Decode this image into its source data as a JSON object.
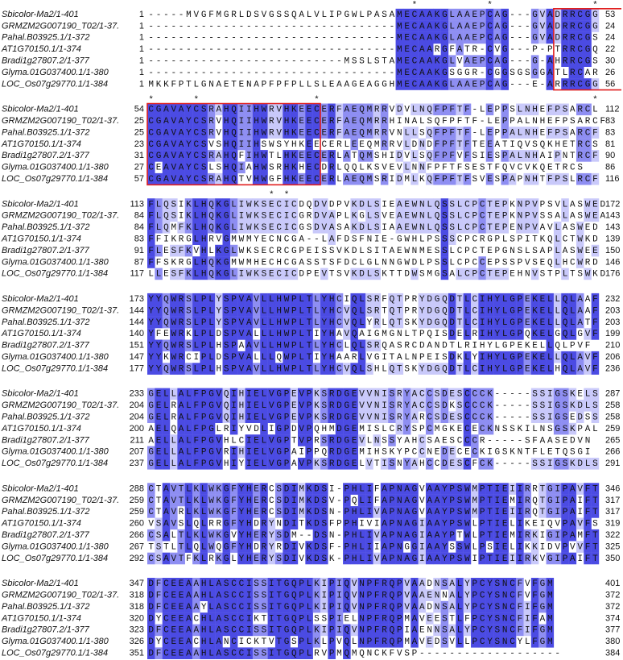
{
  "blocks": [
    {
      "stars": "                                   *         *             *",
      "rows": [
        {
          "name": "Sbicolor-Ma2/1-401",
          "start": "1",
          "seq": "-----MVGFMGRLDSVGSSQALVLIPGWLPASAMECAAKGLAAEPCAG---GVADRRCGG",
          "end": "53"
        },
        {
          "name": "GRMZM2G007190_T02/1-37.",
          "start": "1",
          "seq": "---------------------------------MECAAKGLAAEPCAG---GVADRRCGG",
          "end": "24"
        },
        {
          "name": "Pahal.B03925.1/1-372",
          "start": "1",
          "seq": "---------------------------------MECAAKGLAAEPCAG---GVADRRCGS",
          "end": "24"
        },
        {
          "name": "AT1G70150.1/1-374",
          "start": "1",
          "seq": "---------------------------------MECAARGFATR-CVG---P-PTRRCGQ",
          "end": "22"
        },
        {
          "name": "Bradi1g27807.2/1-377",
          "start": "1",
          "seq": "--------------------------MSSLSTAMECAAKGLVAEPCAG---G-AHRRCGS",
          "end": "30"
        },
        {
          "name": "Glyma.01G037400.1/1-380",
          "start": "1",
          "seq": "---------------------------------MECAAKGSGGR-CGGSGSGGATLRCAR",
          "end": "26"
        },
        {
          "name": "LOC_Os07g29770.1/1-384",
          "start": "1",
          "seq": "MKKFPTLGNAETENAPFPFPLLSLEAAGEAGGHMECAAKGLAAEPCAG---E-ARRRCGG",
          "end": "56"
        }
      ]
    },
    {
      "stars": "*     *               *                                    *",
      "rows": [
        {
          "name": "Sbicolor-Ma2/1-401",
          "start": "54",
          "seq": "CGAVAYCSRAHQIIHWRVHKEECERFAEQMRRVDVLNQFPFTF-LEPPSLNHEFPSARCL",
          "end": "112"
        },
        {
          "name": "GRMZM2G007190_T02/1-37.",
          "start": "25",
          "seq": "CGAVAYCSRVHQIIHWRVHKEECERFAEQMRRHINALSQFPFTF-LEPPALNHEFPSARCF",
          "end": "83"
        },
        {
          "name": "Pahal.B03925.1/1-372",
          "start": "25",
          "seq": "CGAVAYCSRVHQIIHWRVHKEECERFAEQMRRVNLLSQFPFTF-LEPPALNHEFPSARCF",
          "end": "83"
        },
        {
          "name": "AT1G70150.1/1-374",
          "start": "23",
          "seq": "CGAVAYCSVSHQIIHSWSYHKEECERLEEQMRRVLDNDFPFTFTEEATIQVSQKHETRCS",
          "end": "81"
        },
        {
          "name": "Bradi1g27807.2/1-377",
          "start": "31",
          "seq": "CGAVAYCSRAHQFIHWTLHKEECERLATQMSHIDVLSQFPFVFSIESPALNHAIPNTRCF",
          "end": "90"
        },
        {
          "name": "Glyma.01G037400.1/1-380",
          "start": "27",
          "seq": "CEAVAYCSLSHQIAHWSRHKHECDRLQQLKSVEVLNNFPFTFSESTFQVCVKQETRCS",
          "end": "86"
        },
        {
          "name": "LOC_Os07g29770.1/1-384",
          "start": "57",
          "seq": "CGAVAYCSRAHQTVHWGFHKEECERLAEQMSRIDMLKQFPFTFSVESPAPNHTFPSLRCF",
          "end": "116"
        }
      ]
    },
    {
      "stars": "                * *",
      "rows": [
        {
          "name": "Sbicolor-Ma2/1-401",
          "start": "113",
          "seq": "FLQSIKLHQKGLIWKSECICDQDVDPVKDLSIEAEWNLQSSLCPCTEPKNPVPSVLASWED",
          "end": "172"
        },
        {
          "name": "GRMZM2G007190_T02/1-37.",
          "start": "84",
          "seq": "FLQSIKLHQKGLIWKSECICGRDVAPLKGLSVEAEWNLQSSLCPCTEPKNPVSSALASWEA",
          "end": "143"
        },
        {
          "name": "Pahal.B03925.1/1-372",
          "start": "84",
          "seq": "FLQMFKLHQKGLIWKSECICGSDVASAKDLSIAAEWNLQSSLCPCTEPENPVAVLASWED",
          "end": "143"
        },
        {
          "name": "AT1G70150.1/1-374",
          "start": "83",
          "seq": "FFIKRGLHRVGMWMYECNCGA--LAFDSFNIE-GWHLPSSSCPCRGPLSPITKQLCTWKD",
          "end": "139"
        },
        {
          "name": "Bradi1g27807.2/1-377",
          "start": "91",
          "seq": "FLESFKVHLKGLWKSECRCGPEISSVKDLSITAEWNMESSLCPCTEPGNSLSAPLASWEE",
          "end": "150"
        },
        {
          "name": "Glyma.01G037400.1/1-380",
          "start": "87",
          "seq": "FFSKRGLHQKGMWMHECHCGASSTSFDCLGLNNGWDLPSSLCPCCEPSSPVSEQLHCWRD",
          "end": "146"
        },
        {
          "name": "LOC_Os07g29770.1/1-384",
          "start": "117",
          "seq": "LLESFKLHQKGLIWKSECICDPEVTSVKDLSKTTDWSMGSALCPCTEPEHNVSTPLTSWKD",
          "end": "176"
        }
      ]
    },
    {
      "rows": [
        {
          "name": "Sbicolor-Ma2/1-401",
          "start": "173",
          "seq": "YYQWRSLPLYSPVAVLLHWPLTLYHCIQLSRFQTPRYDGQDTLCIHYLGPEKELLQLAAF",
          "end": "232"
        },
        {
          "name": "GRMZM2G007190_T02/1-37.",
          "start": "144",
          "seq": "YYQWRSLPLYSPVAVLLHWPLTLYHCVQLSRTQTPRYDGQDTLCIHYLGPEKELLQLAAF",
          "end": "203"
        },
        {
          "name": "Pahal.B03925.1/1-372",
          "start": "144",
          "seq": "YYQWRSLPLYSPVAVLLHWPLTLYHCVQLYRLQTSKYDGQDTLCIHYLGPEKELLQLATF",
          "end": "203"
        },
        {
          "name": "AT1G70150.1/1-374",
          "start": "140",
          "seq": "YFEWRKLPLDSPVALLLHWPLTIYHAVQAIGMGNLTPQISDELRIHYLGPQKELGQLGVF",
          "end": "199"
        },
        {
          "name": "Bradi1g27807.2/1-377",
          "start": "151",
          "seq": "YYQWRSLPLHSPAAVLLHWPLTLYHCLQLSRQASRCDANDTLRIHYLGPEKELLQLPVF",
          "end": "210"
        },
        {
          "name": "Glyma.01G037400.1/1-380",
          "start": "147",
          "seq": "YYKWRCIPLDSPVALLLQWPLTIYHAARLVGITALNPEISDKLYIHYLGPEKELLQLAVF",
          "end": "206"
        },
        {
          "name": "LOC_Os07g29770.1/1-384",
          "start": "177",
          "seq": "YYQWRSLPLHSPVAVLLHWPLTLYHCVQLSHLQTSKYDGQDTLCIHYLGPEKELHQLAVF",
          "end": "236"
        }
      ]
    },
    {
      "rows": [
        {
          "name": "Sbicolor-Ma2/1-401",
          "start": "233",
          "seq": "GELLALFPGVQIHIELVGPEVPKSRDGEVVNISRYACCSDESCCCK-----SSIGSKELS",
          "end": "287"
        },
        {
          "name": "GRMZM2G007190_T02/1-37.",
          "start": "204",
          "seq": "GELRALFPGVQIHIELVGPEVPKSRDGEVVNISRYACCSDKSCCCK-----SSIGSKDLS",
          "end": "258"
        },
        {
          "name": "Pahal.B03925.1/1-372",
          "start": "204",
          "seq": "GELRALFPGVQIHIELVGPEVPKSRDGEVVNISRYARCSDESCCCK-----SSIGSEDSS",
          "end": "258"
        },
        {
          "name": "AT1G70150.1/1-374",
          "start": "200",
          "seq": "AELQALFPGLRIYVDLIGPDVPQHMDGEMISLCRYSPCMGKECECKNSSKILNSGSKPAL",
          "end": "259"
        },
        {
          "name": "Bradi1g27807.2/1-377",
          "start": "211",
          "seq": "AELLALFPGVHLCIELVGPTVPRSRDGEVLNSSYAHCSAESCCCR-----SFAASEDVN",
          "end": "265"
        },
        {
          "name": "Glyma.01G037400.1/1-380",
          "start": "207",
          "seq": "GELLALFPGVRIHIELVGPAIPPQRDGEMIHSKYPCCNEDECECKIGSKNTFLETQSGI",
          "end": "266"
        },
        {
          "name": "LOC_Os07g29770.1/1-384",
          "start": "237",
          "seq": "GELLALFPGVHIYIELVGPAVPKSRDGELVTISNYAHCCDESCFCK-----SSIGSKDLS",
          "end": "291"
        }
      ]
    },
    {
      "rows": [
        {
          "name": "Sbicolor-Ma2/1-401",
          "start": "288",
          "seq": "CTAVTLKLWKGFYHERCSDIMKDSI-PHLIFAPNAGVAAYPSWMPTIEIIRRTGIPAVFT",
          "end": "346"
        },
        {
          "name": "GRMZM2G007190_T02/1-37.",
          "start": "259",
          "seq": "CTAVTLKLWKGFYHERCSDIMKDSV-PQLIFAPNAGVAAYPSWMPTIEMIRQTGIPAIFT",
          "end": "317"
        },
        {
          "name": "Pahal.B03925.1/1-372",
          "start": "259",
          "seq": "CTAVRLKLWKGFYHERCSDIMKDSN-PHLIVAPNAGVAAYPSWMPTIEIIRQTGIPAIFT",
          "end": "317"
        },
        {
          "name": "AT1G70150.1/1-374",
          "start": "260",
          "seq": "VSAVSLQLRRGFYHDRYNDITKDSFPPHIVIAPNAGIAAYPSWLPTIELIKEIQVPAVFS",
          "end": "319"
        },
        {
          "name": "Bradi1g27807.2/1-377",
          "start": "266",
          "seq": "CSALTLKLWKGVYHERYSDM--DSN-PHLIVAPNAGIAAYPTWLPTIEMIRKIGIPAMFT",
          "end": "322"
        },
        {
          "name": "Glyma.01G037400.1/1-380",
          "start": "267",
          "seq": "TSTLTLQLWQGFYHDRYRDIVKDSF-PHLIIAPNGGIAAYSSWLPSIELIKKIDVPVVFT",
          "end": "325"
        },
        {
          "name": "LOC_Os07g29770.1/1-384",
          "start": "292",
          "seq": "CSAVTFKLRKGLYHERYSDIVKDSK-PHLIVAPNAGIAAYPSWIPTIEIIRKVGIPAIFT",
          "end": "350"
        }
      ]
    },
    {
      "rows": [
        {
          "name": "Sbicolor-Ma2/1-401",
          "start": "347",
          "seq": "DFCEEAAHLASCCISSITGQPLKIPIQVNPFRQPVAADNSALYPCYSNCFVFGM",
          "end": "401"
        },
        {
          "name": "GRMZM2G007190_T02/1-37.",
          "start": "318",
          "seq": "DFCEEAAHLASCCISSITGQPLKIPIQVNPFRQPVAAENNALYPCYSNCFVFGM",
          "end": "372"
        },
        {
          "name": "Pahal.B03925.1/1-372",
          "start": "318",
          "seq": "DFCEEAAYLASCCISSITGQPLKIPIQVNPFRQPVAADNSALYPCYSNCFIFGM",
          "end": "372"
        },
        {
          "name": "AT1G70150.1/1-374",
          "start": "320",
          "seq": "DYCEEACHLASCCIKTITGQPLSSPIELNPFRQPMAVEESTLFPCYSNCFIFAM",
          "end": "374"
        },
        {
          "name": "Bradi1g27807.2/1-377",
          "start": "323",
          "seq": "DFCEEAAHLASCCISSITGQPLKIPIQVNPFRQPIAENNSALYPCYSNCFIFGM",
          "end": "377"
        },
        {
          "name": "Glyma.01G037400.1/1-380",
          "start": "326",
          "seq": "DYCEEACHLANCICKTVTGSPLKLPVQLNPFRQPMAVEDSVLLPCYSNCYLFGM",
          "end": "380"
        },
        {
          "name": "LOC_Os07g29770.1/1-384",
          "start": "351",
          "seq": "DFCEEAAHLASCCISSITGQPLRVPMQMQNCKFVSP-------------------",
          "end": "384"
        }
      ]
    }
  ]
}
